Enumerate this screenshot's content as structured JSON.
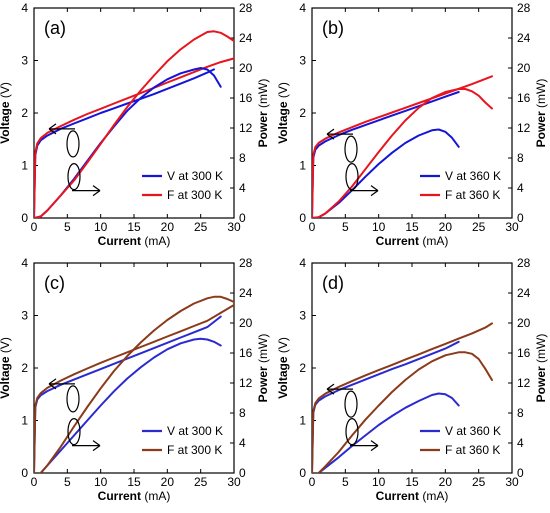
{
  "chart_data": [
    {
      "type": "line",
      "panel_label": "(a)",
      "xlabel": "Current",
      "xlabel_unit": "(mA)",
      "ylabel_left": "Voltage",
      "ylabel_left_unit": "(V)",
      "ylabel_right": "Power",
      "ylabel_right_unit": "(mW)",
      "xlim": [
        0,
        30
      ],
      "ylim_left": [
        0,
        4
      ],
      "ylim_right": [
        0,
        28
      ],
      "x_ticks": [
        "0",
        "5",
        "10",
        "15",
        "20",
        "25",
        "30"
      ],
      "y_left_ticks": [
        "0",
        "1",
        "2",
        "3",
        "4"
      ],
      "y_right_ticks": [
        "0",
        "4",
        "8",
        "12",
        "16",
        "20",
        "24",
        "28"
      ],
      "legend_position": "bottom-right",
      "series": [
        {
          "name": "V at 300 K",
          "axis": "left",
          "color": "#1515d8",
          "x": [
            0,
            0.2,
            0.5,
            1,
            2,
            4,
            6,
            8,
            10,
            12,
            14,
            16,
            18,
            20,
            22,
            24,
            26,
            27
          ],
          "y": [
            0,
            1.2,
            1.38,
            1.48,
            1.57,
            1.7,
            1.8,
            1.9,
            2.0,
            2.09,
            2.18,
            2.27,
            2.36,
            2.46,
            2.56,
            2.66,
            2.77,
            2.83
          ]
        },
        {
          "name": "F at 300 K",
          "axis": "left",
          "color": "#e8141e",
          "x": [
            0,
            0.2,
            0.5,
            1,
            2,
            4,
            6,
            8,
            10,
            12,
            14,
            16,
            18,
            20,
            22,
            24,
            26,
            28,
            30
          ],
          "y": [
            0,
            1.25,
            1.42,
            1.52,
            1.62,
            1.75,
            1.87,
            1.98,
            2.08,
            2.18,
            2.28,
            2.38,
            2.48,
            2.58,
            2.68,
            2.78,
            2.88,
            2.97,
            3.04
          ]
        },
        {
          "name": "V at 300 K",
          "axis": "right",
          "color": "#1515d8",
          "x": [
            0,
            1,
            2,
            4,
            6,
            8,
            10,
            12,
            14,
            16,
            18,
            20,
            22,
            24,
            25,
            26,
            27,
            28
          ],
          "y": [
            0,
            0.2,
            1,
            3,
            5.2,
            7.6,
            10,
            12.2,
            14.3,
            16.0,
            17.4,
            18.5,
            19.3,
            19.8,
            20.0,
            19.8,
            19.0,
            17.5
          ]
        },
        {
          "name": "F at 300 K",
          "axis": "right",
          "color": "#e8141e",
          "x": [
            0,
            1,
            2,
            4,
            6,
            8,
            10,
            12,
            14,
            16,
            18,
            20,
            22,
            24,
            26,
            27,
            28,
            29,
            30
          ],
          "y": [
            0,
            0.2,
            1,
            3,
            5.0,
            7.4,
            9.9,
            12.4,
            14.8,
            17.0,
            19.0,
            20.9,
            22.5,
            23.8,
            24.8,
            24.9,
            24.7,
            24.2,
            23.6
          ]
        }
      ]
    },
    {
      "type": "line",
      "panel_label": "(b)",
      "xlabel": "Current",
      "xlabel_unit": "(mA)",
      "ylabel_left": "Voltage",
      "ylabel_left_unit": "(V)",
      "ylabel_right": "Power",
      "ylabel_right_unit": "(mW)",
      "xlim": [
        0,
        30
      ],
      "ylim_left": [
        0,
        4
      ],
      "ylim_right": [
        0,
        28
      ],
      "x_ticks": [
        "0",
        "5",
        "10",
        "15",
        "20",
        "25",
        "30"
      ],
      "y_left_ticks": [
        "0",
        "1",
        "2",
        "3",
        "4"
      ],
      "y_right_ticks": [
        "0",
        "4",
        "8",
        "12",
        "16",
        "20",
        "24",
        "28"
      ],
      "legend_position": "bottom-right",
      "series": [
        {
          "name": "V at 360 K",
          "axis": "left",
          "color": "#1515d8",
          "x": [
            0,
            0.2,
            0.5,
            1,
            2,
            4,
            6,
            8,
            10,
            12,
            14,
            16,
            18,
            20,
            22
          ],
          "y": [
            0,
            1.15,
            1.3,
            1.38,
            1.46,
            1.58,
            1.68,
            1.77,
            1.86,
            1.95,
            2.04,
            2.13,
            2.22,
            2.31,
            2.4
          ]
        },
        {
          "name": "F at 360 K",
          "axis": "left",
          "color": "#e8141e",
          "x": [
            0,
            0.2,
            0.5,
            1,
            2,
            4,
            6,
            8,
            10,
            12,
            14,
            16,
            18,
            20,
            22,
            24,
            26,
            27
          ],
          "y": [
            0,
            1.2,
            1.35,
            1.43,
            1.51,
            1.63,
            1.73,
            1.83,
            1.92,
            2.01,
            2.1,
            2.19,
            2.28,
            2.37,
            2.46,
            2.55,
            2.65,
            2.7
          ]
        },
        {
          "name": "V at 360 K",
          "axis": "right",
          "color": "#1515d8",
          "x": [
            0,
            1,
            2,
            4,
            6,
            8,
            10,
            12,
            14,
            16,
            18,
            19,
            20,
            21,
            22
          ],
          "y": [
            0,
            0.1,
            0.6,
            2,
            3.7,
            5.5,
            7.2,
            8.7,
            10.0,
            11.0,
            11.7,
            11.8,
            11.5,
            10.7,
            9.5
          ]
        },
        {
          "name": "F at 360 K",
          "axis": "right",
          "color": "#e8141e",
          "x": [
            0,
            1,
            2,
            4,
            6,
            8,
            10,
            12,
            14,
            16,
            18,
            20,
            22,
            23,
            24,
            25,
            26,
            27
          ],
          "y": [
            0,
            0.1,
            0.6,
            2.2,
            4.2,
            6.5,
            8.8,
            11.0,
            13.0,
            14.7,
            16.0,
            16.8,
            17.2,
            17.2,
            16.9,
            16.3,
            15.4,
            14.6
          ]
        }
      ]
    },
    {
      "type": "line",
      "panel_label": "(c)",
      "xlabel": "Current",
      "xlabel_unit": "(mA)",
      "ylabel_left": "Voltage",
      "ylabel_left_unit": "(V)",
      "ylabel_right": "Power",
      "ylabel_right_unit": "(mW)",
      "xlim": [
        0,
        30
      ],
      "ylim_left": [
        0,
        4
      ],
      "ylim_right": [
        0,
        28
      ],
      "x_ticks": [
        "0",
        "5",
        "10",
        "15",
        "20",
        "25",
        "30"
      ],
      "y_left_ticks": [
        "0",
        "1",
        "2",
        "3",
        "4"
      ],
      "y_right_ticks": [
        "0",
        "4",
        "8",
        "12",
        "16",
        "20",
        "24",
        "28"
      ],
      "legend_position": "bottom-right",
      "series": [
        {
          "name": "V at 300 K",
          "axis": "left",
          "color": "#2a2ad0",
          "x": [
            0,
            0.2,
            0.5,
            1,
            2,
            4,
            6,
            8,
            10,
            12,
            14,
            16,
            18,
            20,
            22,
            24,
            26,
            28
          ],
          "y": [
            0,
            1.25,
            1.4,
            1.48,
            1.56,
            1.68,
            1.78,
            1.88,
            1.98,
            2.08,
            2.18,
            2.28,
            2.38,
            2.48,
            2.58,
            2.68,
            2.78,
            2.98
          ]
        },
        {
          "name": "F at 300 K",
          "axis": "left",
          "color": "#8b3a1a",
          "x": [
            0,
            0.2,
            0.5,
            1,
            2,
            4,
            6,
            8,
            10,
            12,
            14,
            16,
            18,
            20,
            22,
            24,
            26,
            28,
            30
          ],
          "y": [
            0,
            1.28,
            1.43,
            1.52,
            1.62,
            1.76,
            1.88,
            1.99,
            2.1,
            2.2,
            2.3,
            2.4,
            2.5,
            2.6,
            2.7,
            2.8,
            2.9,
            3.05,
            3.2
          ]
        },
        {
          "name": "V at 300 K",
          "axis": "right",
          "color": "#2a2ad0",
          "x": [
            1,
            2,
            4,
            6,
            8,
            10,
            12,
            14,
            16,
            18,
            20,
            22,
            24,
            25,
            26,
            27,
            28
          ],
          "y": [
            0,
            1,
            3,
            5.0,
            7.0,
            9.0,
            10.9,
            12.6,
            14.1,
            15.4,
            16.5,
            17.3,
            17.8,
            17.9,
            17.8,
            17.5,
            17.0
          ]
        },
        {
          "name": "F at 300 K",
          "axis": "right",
          "color": "#8b3a1a",
          "x": [
            1,
            2,
            4,
            6,
            8,
            10,
            12,
            14,
            16,
            18,
            20,
            22,
            24,
            26,
            27,
            28,
            29,
            30
          ],
          "y": [
            0,
            1,
            3.5,
            6.2,
            8.8,
            11.3,
            13.6,
            15.6,
            17.4,
            19.0,
            20.4,
            21.6,
            22.6,
            23.3,
            23.5,
            23.5,
            23.2,
            22.8
          ]
        }
      ]
    },
    {
      "type": "line",
      "panel_label": "(d)",
      "xlabel": "Current",
      "xlabel_unit": "(mA)",
      "ylabel_left": "Voltage",
      "ylabel_left_unit": "(V)",
      "ylabel_right": "Power",
      "ylabel_right_unit": "(mW)",
      "xlim": [
        0,
        30
      ],
      "ylim_left": [
        0,
        4
      ],
      "ylim_right": [
        0,
        28
      ],
      "x_ticks": [
        "0",
        "5",
        "10",
        "15",
        "20",
        "25",
        "30"
      ],
      "y_left_ticks": [
        "0",
        "1",
        "2",
        "3",
        "4"
      ],
      "y_right_ticks": [
        "0",
        "4",
        "8",
        "12",
        "16",
        "20",
        "24",
        "28"
      ],
      "legend_position": "bottom-right",
      "series": [
        {
          "name": "V at 360 K",
          "axis": "left",
          "color": "#2a2ad0",
          "x": [
            0,
            0.2,
            0.5,
            1,
            2,
            4,
            6,
            8,
            10,
            12,
            14,
            16,
            18,
            20,
            22
          ],
          "y": [
            0,
            1.15,
            1.3,
            1.38,
            1.46,
            1.58,
            1.68,
            1.78,
            1.88,
            1.98,
            2.07,
            2.17,
            2.27,
            2.37,
            2.5
          ]
        },
        {
          "name": "F at 360 K",
          "axis": "left",
          "color": "#8b3a1a",
          "x": [
            0,
            0.2,
            0.5,
            1,
            2,
            4,
            6,
            8,
            10,
            12,
            14,
            16,
            18,
            20,
            22,
            24,
            26,
            27
          ],
          "y": [
            0,
            1.18,
            1.33,
            1.42,
            1.51,
            1.64,
            1.75,
            1.86,
            1.96,
            2.06,
            2.16,
            2.26,
            2.36,
            2.46,
            2.56,
            2.66,
            2.77,
            2.85
          ]
        },
        {
          "name": "V at 360 K",
          "axis": "right",
          "color": "#2a2ad0",
          "x": [
            1,
            2,
            4,
            6,
            8,
            10,
            12,
            14,
            16,
            18,
            19,
            20,
            21,
            22
          ],
          "y": [
            0,
            0.7,
            2.1,
            3.6,
            5.0,
            6.4,
            7.6,
            8.7,
            9.6,
            10.4,
            10.6,
            10.5,
            10.0,
            9.0
          ]
        },
        {
          "name": "F at 360 K",
          "axis": "right",
          "color": "#8b3a1a",
          "x": [
            1,
            2,
            4,
            6,
            8,
            10,
            12,
            14,
            16,
            18,
            20,
            22,
            23,
            24,
            25,
            26,
            27
          ],
          "y": [
            0,
            0.9,
            2.8,
            5.0,
            7.1,
            9.0,
            10.8,
            12.4,
            13.8,
            14.9,
            15.7,
            16.1,
            16.1,
            15.9,
            15.2,
            13.9,
            12.4
          ]
        }
      ]
    }
  ]
}
